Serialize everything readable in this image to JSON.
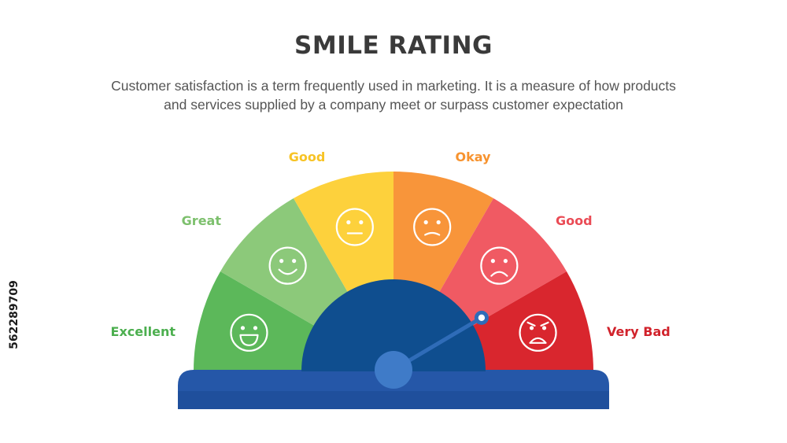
{
  "title": "SMILE RATING",
  "subtitle": {
    "line1": "Customer satisfaction is a term frequently used in marketing. It is a measure of how products",
    "line2": "and services supplied by a company meet or surpass customer expectation"
  },
  "side_id": "562289709",
  "colors": {
    "base": "#2557a8",
    "base_top": "#3a6fc4",
    "hub": "#0f4e8f",
    "needle": "#2f6cb8",
    "needle_tip_ring": "#2f6cb8"
  },
  "gauge": {
    "needle_value": 0.83,
    "segments": [
      {
        "label": "Excellent",
        "color": "#5cb85a",
        "label_color": "#4caf4f",
        "face": "laugh-face-icon"
      },
      {
        "label": "Great",
        "color": "#8cc97a",
        "label_color": "#7dc06d",
        "face": "smile-face-icon"
      },
      {
        "label": "Good",
        "color": "#fdd13c",
        "label_color": "#f7c325",
        "face": "neutral-face-icon"
      },
      {
        "label": "Okay",
        "color": "#f8953a",
        "label_color": "#f7932f",
        "face": "slight-frown-face-icon"
      },
      {
        "label": "Good",
        "color": "#f05a63",
        "label_color": "#ea4b55",
        "face": "sad-face-icon"
      },
      {
        "label": "Very Bad",
        "color": "#d9262e",
        "label_color": "#d1222b",
        "face": "angry-face-icon"
      }
    ]
  }
}
